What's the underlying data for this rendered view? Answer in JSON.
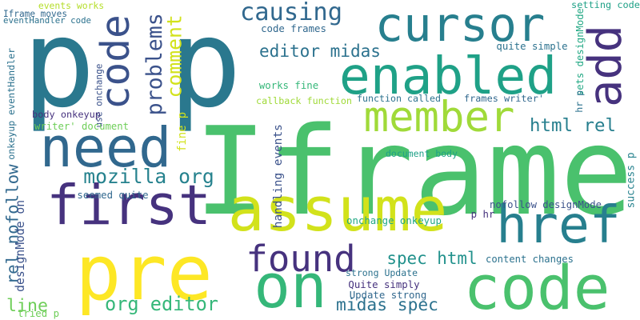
{
  "palette": {
    "navy": "#46327e",
    "blue": "#365c8d",
    "teal": "#277f8e",
    "teal_green": "#1fa187",
    "green": "#4ac16d",
    "lime": "#a0da39",
    "yellow": "#fde725"
  },
  "words": [
    {
      "text": "p p",
      "color": "#2a788e"
    },
    {
      "text": "Iframe",
      "color": "#4ac16d"
    },
    {
      "text": "pre",
      "color": "#fde725"
    },
    {
      "text": "cursor",
      "color": "#277f8e"
    },
    {
      "text": "enabled",
      "color": "#1fa187"
    },
    {
      "text": "add",
      "color": "#46327e"
    },
    {
      "text": "code",
      "color": "#3b528b"
    },
    {
      "text": "need",
      "color": "#31688e"
    },
    {
      "text": "first",
      "color": "#46327e"
    },
    {
      "text": "member",
      "color": "#a0da39"
    },
    {
      "text": "assume",
      "color": "#d2e21b"
    },
    {
      "text": "href",
      "color": "#277f8e"
    },
    {
      "text": "on",
      "color": "#35b779"
    },
    {
      "text": "code",
      "color": "#4ac16d"
    },
    {
      "text": "found",
      "color": "#46327e"
    },
    {
      "text": "causing",
      "color": "#31688e"
    },
    {
      "text": "problems",
      "color": "#3b528b"
    },
    {
      "text": "comment",
      "color": "#d2e21b"
    },
    {
      "text": "editor midas",
      "color": "#2c728e"
    },
    {
      "text": "html rel",
      "color": "#277f8e"
    },
    {
      "text": "mozilla org",
      "color": "#26828e"
    },
    {
      "text": "rel nofollow",
      "color": "#31688e"
    },
    {
      "text": "spec html",
      "color": "#21918c"
    },
    {
      "text": "org editor",
      "color": "#35b779"
    },
    {
      "text": "line",
      "color": "#6ece58"
    },
    {
      "text": "midas spec",
      "color": "#2c728e"
    },
    {
      "text": "events works",
      "color": "#b5de2b"
    },
    {
      "text": "Iframe moves",
      "color": "#31688e"
    },
    {
      "text": "eventHandler code",
      "color": "#2c728e"
    },
    {
      "text": "code frames",
      "color": "#31688e"
    },
    {
      "text": "setting code",
      "color": "#1fa187"
    },
    {
      "text": "sets designMode",
      "color": "#22a884"
    },
    {
      "text": "quite simple",
      "color": "#2c728e"
    },
    {
      "text": "works fine",
      "color": "#35b779"
    },
    {
      "text": "callback function",
      "color": "#a0da39"
    },
    {
      "text": "function called",
      "color": "#2c728e"
    },
    {
      "text": "frames writer'",
      "color": "#31688e"
    },
    {
      "text": "hr p",
      "color": "#2c728e"
    },
    {
      "text": "onkeyup eventHandler",
      "color": "#2c728e"
    },
    {
      "text": "use onchange",
      "color": "#3b528b"
    },
    {
      "text": "body onkeyup",
      "color": "#46327e"
    },
    {
      "text": "writer' document",
      "color": "#6ece58"
    },
    {
      "text": "fine p",
      "color": "#d2e21b"
    },
    {
      "text": "seemed quite",
      "color": "#31688e"
    },
    {
      "text": "handling events",
      "color": "#3b528b"
    },
    {
      "text": "document body",
      "color": "#1fa187"
    },
    {
      "text": "nofollow designMode",
      "color": "#3b528b"
    },
    {
      "text": "success p",
      "color": "#26828e"
    },
    {
      "text": "p hr",
      "color": "#46327e"
    },
    {
      "text": "designMode on",
      "color": "#3b528b"
    },
    {
      "text": "onchange onkeyup",
      "color": "#22a884"
    },
    {
      "text": "content changes",
      "color": "#2c728e"
    },
    {
      "text": "strong Update",
      "color": "#2c728e"
    },
    {
      "text": "Quite simply",
      "color": "#46327e"
    },
    {
      "text": "Update strong",
      "color": "#31688e"
    },
    {
      "text": "tried p",
      "color": "#6ece58"
    }
  ]
}
